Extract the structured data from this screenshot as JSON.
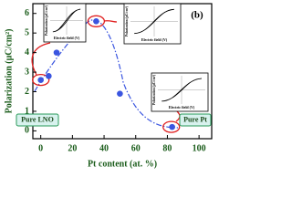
{
  "chart_data": {
    "type": "scatter",
    "x_label": "Pt content (at. %)",
    "y_label": "Polarization (μC/cm²)",
    "series": [
      {
        "name": "Polarization",
        "color": "#3a55e0",
        "x": [
          0,
          5,
          10,
          35,
          50,
          83
        ],
        "values": [
          2.6,
          2.8,
          4.0,
          5.6,
          1.9,
          0.2
        ]
      }
    ],
    "xlim": [
      -5,
      108
    ],
    "xticks": [
      0,
      20,
      40,
      60,
      80,
      100
    ],
    "ylim": [
      -0.4,
      6.5
    ],
    "yticks": [
      0,
      1,
      2,
      3,
      4,
      5,
      6
    ],
    "annotations": [
      "(b)",
      "Pure LNO",
      "Pure Pt"
    ],
    "insets": [
      {
        "x_label": "Electric field (V)",
        "y_label": "Polarization (μC/cm²)"
      },
      {
        "x_label": "Electric field (V)",
        "y_label": "Polarization (μC/cm²)"
      },
      {
        "x_label": "Electric field (V)",
        "y_label": "Polarization (μC/cm²)"
      }
    ]
  }
}
